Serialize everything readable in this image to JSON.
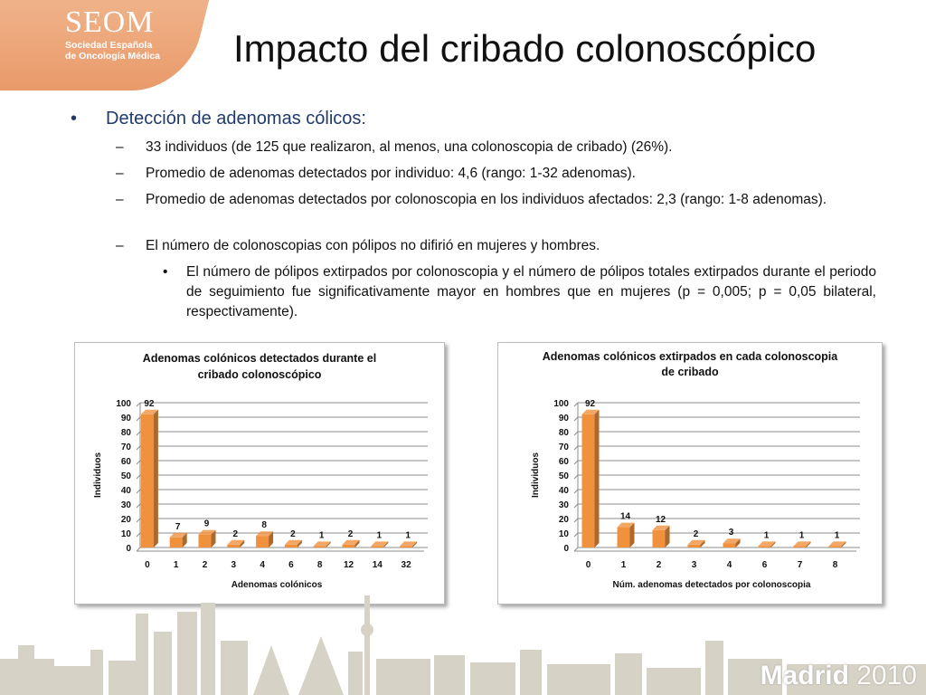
{
  "logo": {
    "main": "SEOM",
    "sub1": "Sociedad Española",
    "sub2": "de Oncología Médica"
  },
  "title": "Impacto del cribado colonoscópico",
  "bullets": {
    "main": "Detección de adenomas cólicos:",
    "items": [
      "33 individuos (de 125 que realizaron, al menos, una colonoscopia de cribado) (26%).",
      "Promedio de adenomas detectados por individuo: 4,6 (rango: 1-32 adenomas).",
      "Promedio de adenomas detectados por colonoscopia en los individuos afectados: 2,3 (rango: 1-8 adenomas).",
      "El número de colonoscopias con pólipos no difirió en mujeres y hombres."
    ],
    "sub": "El número de pólipos extirpados por colonoscopia y el número de pólipos totales extirpados durante el periodo de seguimiento fue significativamente mayor en hombres que en mujeres (p = 0,005; p = 0,05 bilateral, respectivamente)."
  },
  "chart_data": [
    {
      "type": "bar",
      "title": "Adenomas colónicos detectados durante el cribado colonoscópico",
      "title_lines": [
        "Adenomas colónicos detectados durante el",
        "cribado colonoscópico"
      ],
      "xlabel": "Adenomas colónicos",
      "ylabel": "Individuos",
      "categories": [
        "0",
        "1",
        "2",
        "3",
        "4",
        "6",
        "8",
        "12",
        "14",
        "32"
      ],
      "values": [
        92,
        7,
        9,
        2,
        8,
        2,
        1,
        2,
        1,
        1
      ],
      "ylim": [
        0,
        100
      ],
      "yticks": [
        0,
        10,
        20,
        30,
        40,
        50,
        60,
        70,
        80,
        90,
        100
      ],
      "grid": true,
      "bar_color": "#f0913e"
    },
    {
      "type": "bar",
      "title": "Adenomas colónicos extirpados en cada colonoscopia de cribado",
      "title_lines": [
        "Adenomas colónicos extirpados en cada colonoscopia",
        "de cribado"
      ],
      "xlabel": "Núm. adenomas detectados por colonoscopia",
      "ylabel": "Individuos",
      "categories": [
        "0",
        "1",
        "2",
        "3",
        "4",
        "6",
        "7",
        "8"
      ],
      "values": [
        92,
        14,
        12,
        2,
        3,
        1,
        1,
        1
      ],
      "ylim": [
        0,
        100
      ],
      "yticks": [
        0,
        10,
        20,
        30,
        40,
        50,
        60,
        70,
        80,
        90,
        100
      ],
      "grid": true,
      "bar_color": "#f0913e"
    }
  ],
  "footer": {
    "city": "Madrid",
    "year": "2010"
  }
}
